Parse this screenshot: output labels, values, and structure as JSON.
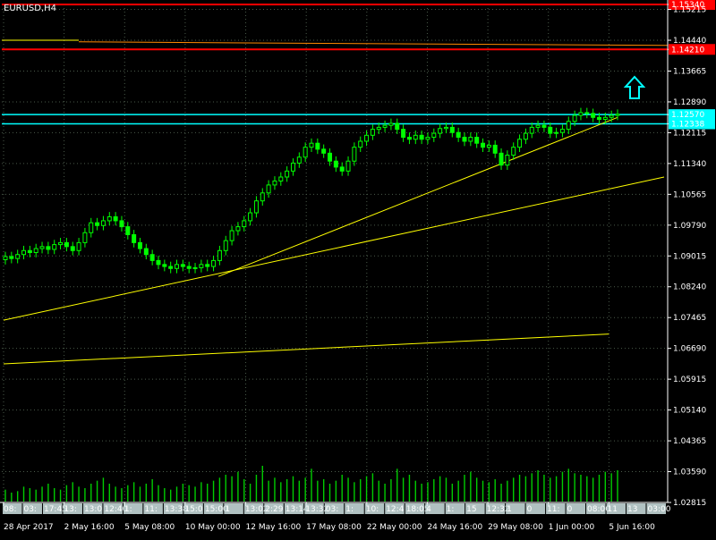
{
  "chart_title": "EURUSD,H4",
  "colors": {
    "background": "#000000",
    "candle": "#00ff00",
    "grid": "#4a5a4a",
    "axis_text": "#ffffff",
    "trendline": "#ffff00",
    "resistance": "#ff0000",
    "support_band": "#00ffff",
    "arrow": "#00ffff",
    "volume": "#00cc00"
  },
  "price_axis": {
    "ticks": [
      "1.15340",
      "1.15215",
      "1.14440",
      "1.14210",
      "1.13665",
      "1.12890",
      "1.12570",
      "1.12338",
      "1.12115",
      "1.11340",
      "1.10565",
      "1.09790",
      "1.09015",
      "1.08240",
      "1.07465",
      "1.06690",
      "1.05915",
      "1.05140",
      "1.04365",
      "1.03590",
      "1.02815"
    ],
    "highlighted": [
      {
        "value": "1.15340",
        "kind": "resistance"
      },
      {
        "value": "1.14210",
        "kind": "resistance"
      },
      {
        "value": "1.12570",
        "kind": "support"
      },
      {
        "value": "1.12338",
        "kind": "support"
      }
    ]
  },
  "time_axis": {
    "major_labels": [
      "28 Apr 2017",
      "2 May 16:00",
      "5 May 08:00",
      "10 May 00:00",
      "12 May 16:00",
      "17 May 08:00",
      "22 May 00:00",
      "24 May 16:00",
      "29 May 08:00",
      "1 Jun 00:00",
      "5 Jun 16:00"
    ],
    "scale_labels": [
      "08:",
      "03:",
      "17:45",
      "13:",
      "13:0",
      "12:40",
      "1:",
      "11:",
      "13:38",
      "15:0",
      "15:00",
      "1",
      "13:02",
      "2:29",
      "13:14",
      "13:32",
      "03:",
      "1:",
      "10:",
      "12:4",
      "18:05",
      "4",
      "1:",
      "15",
      "12:32",
      "1",
      "0",
      "11:",
      "0",
      "08:00",
      "11",
      "13",
      "03:00"
    ]
  },
  "chart_data": {
    "type": "candlestick",
    "symbol": "EURUSD",
    "timeframe": "H4",
    "x_range": [
      "28 Apr 2017",
      "7 Jun 2017"
    ],
    "ylim": [
      1.02815,
      1.1534
    ],
    "close_series": [
      1.09,
      1.0895,
      1.0905,
      1.0915,
      1.091,
      1.092,
      1.0925,
      1.0918,
      1.093,
      1.0935,
      1.0925,
      1.0915,
      1.0935,
      1.096,
      1.0985,
      1.0978,
      1.099,
      1.1,
      1.099,
      1.0975,
      1.0955,
      1.0935,
      1.092,
      1.0905,
      1.089,
      1.088,
      1.0875,
      1.087,
      1.088,
      1.0875,
      1.087,
      1.0872,
      1.088,
      1.0875,
      1.089,
      1.0915,
      1.094,
      1.0965,
      1.0975,
      1.099,
      1.101,
      1.104,
      1.106,
      1.108,
      1.109,
      1.11,
      1.1115,
      1.1135,
      1.115,
      1.1175,
      1.1185,
      1.117,
      1.116,
      1.114,
      1.1125,
      1.1115,
      1.114,
      1.1175,
      1.119,
      1.1205,
      1.122,
      1.1225,
      1.123,
      1.1235,
      1.122,
      1.12,
      1.1195,
      1.1205,
      1.1195,
      1.12,
      1.121,
      1.1222,
      1.1225,
      1.1212,
      1.12,
      1.119,
      1.12,
      1.1185,
      1.1175,
      1.118,
      1.116,
      1.113,
      1.1155,
      1.1175,
      1.1195,
      1.121,
      1.1225,
      1.123,
      1.1225,
      1.121,
      1.1212,
      1.122,
      1.124,
      1.1255,
      1.1262,
      1.126,
      1.125,
      1.1245,
      1.125,
      1.1255,
      1.1258
    ],
    "price_levels": [
      {
        "value": 1.1534,
        "kind": "resistance"
      },
      {
        "value": 1.1421,
        "kind": "resistance"
      },
      {
        "value": 1.1257,
        "kind": "support"
      },
      {
        "value": 1.12338,
        "kind": "support"
      }
    ],
    "trendlines": [
      {
        "x1": "28 Apr 2017",
        "y1": 1.074,
        "x2": "7 Jun 2017",
        "y2": 1.11
      },
      {
        "x1": "28 Apr 2017",
        "y1": 1.063,
        "x2": "5 Jun 16:00",
        "y2": 1.0705
      },
      {
        "x1": "10 May 16:00",
        "y1": 1.085,
        "x2": "6 Jun 00:00",
        "y2": 1.125
      }
    ],
    "volume": [
      8,
      6,
      7,
      10,
      9,
      8,
      10,
      12,
      9,
      8,
      11,
      13,
      10,
      9,
      12,
      14,
      16,
      12,
      10,
      9,
      11,
      13,
      10,
      12,
      15,
      11,
      9,
      8,
      10,
      12,
      11,
      10,
      13,
      12,
      14,
      16,
      18,
      17,
      20,
      15,
      12,
      18,
      24,
      14,
      16,
      13,
      15,
      17,
      14,
      16,
      22,
      14,
      15,
      12,
      14,
      18,
      16,
      13,
      15,
      17,
      19,
      14,
      12,
      15,
      22,
      16,
      18,
      14,
      12,
      13,
      15,
      17,
      16,
      12,
      14,
      18,
      20,
      16,
      14,
      13,
      15,
      12,
      14,
      16,
      18,
      17,
      19,
      21,
      18,
      16,
      17,
      20,
      22,
      19,
      18,
      17,
      16,
      18,
      20,
      19,
      21
    ],
    "buy_signal": {
      "shape": "up-arrow"
    }
  }
}
